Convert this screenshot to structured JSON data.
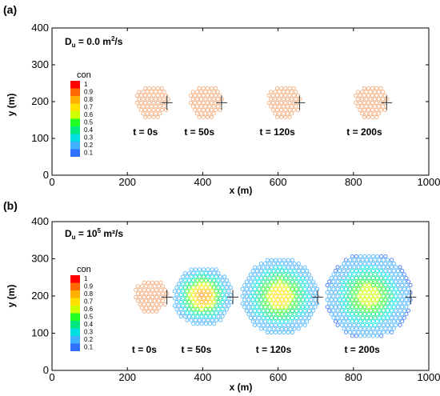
{
  "chart_data": [
    {
      "type": "scatter",
      "panel_label": "(a)",
      "title": "",
      "xlabel": "x (m)",
      "ylabel": "y (m)",
      "xlim": [
        0,
        1000
      ],
      "ylim": [
        0,
        400
      ],
      "xticks": [
        "0",
        "200",
        "400",
        "600",
        "800",
        "1000"
      ],
      "yticks": [
        "0",
        "100",
        "200",
        "300",
        "400"
      ],
      "diffusion_label": {
        "prefix": "D",
        "sub": "u",
        "eq": " = 0.0 m",
        "sup": "2",
        "suffix": "/s"
      },
      "colorbar": {
        "title": "con",
        "labels": [
          "1",
          "0.9",
          "0.8",
          "0.7",
          "0.6",
          "0.5",
          "0.4",
          "0.3",
          "0.2",
          "0.1"
        ]
      },
      "snapshots": [
        {
          "label": "t = 0s",
          "center": [
            265,
            200
          ],
          "radius": 45,
          "marker": [
            305,
            197
          ]
        },
        {
          "label": "t = 50s",
          "center": [
            408,
            200
          ],
          "radius": 45,
          "marker": [
            450,
            197
          ]
        },
        {
          "label": "t = 120s",
          "center": [
            615,
            200
          ],
          "radius": 45,
          "marker": [
            657,
            197
          ]
        },
        {
          "label": "t = 200s",
          "center": [
            846,
            200
          ],
          "radius": 45,
          "marker": [
            888,
            197
          ]
        }
      ]
    },
    {
      "type": "scatter",
      "panel_label": "(b)",
      "title": "",
      "xlabel": "x (m)",
      "ylabel": "y (m)",
      "xlim": [
        0,
        1000
      ],
      "ylim": [
        0,
        400
      ],
      "xticks": [
        "0",
        "200",
        "400",
        "600",
        "800",
        "1000"
      ],
      "yticks": [
        "0",
        "100",
        "200",
        "300",
        "400"
      ],
      "diffusion_label": {
        "prefix": "D",
        "sub": "u",
        "eq": " = 10",
        "sup": "5",
        "suffix": " m²/s"
      },
      "colorbar": {
        "title": "con",
        "labels": [
          "1",
          "0.9",
          "0.8",
          "0.7",
          "0.6",
          "0.5",
          "0.4",
          "0.3",
          "0.2",
          "0.1"
        ]
      },
      "snapshots": [
        {
          "label": "t = 0s",
          "center": [
            262,
            200
          ],
          "radius": 45,
          "marker": [
            305,
            197
          ]
        },
        {
          "label": "t = 50s",
          "center": [
            400,
            200
          ],
          "radius": 80,
          "marker": [
            480,
            197
          ]
        },
        {
          "label": "t = 120s",
          "center": [
            605,
            200
          ],
          "radius": 105,
          "marker": [
            705,
            197
          ]
        },
        {
          "label": "t = 200s",
          "center": [
            840,
            200
          ],
          "radius": 115,
          "marker": [
            952,
            197
          ]
        }
      ]
    }
  ],
  "colors": {
    "initial_particle": "#f2a470",
    "scale": [
      "#ff0000",
      "#ff6a00",
      "#ffb000",
      "#ffe000",
      "#ccff00",
      "#22ff22",
      "#00e880",
      "#00e0e0",
      "#40b0ff",
      "#3070ff"
    ]
  }
}
